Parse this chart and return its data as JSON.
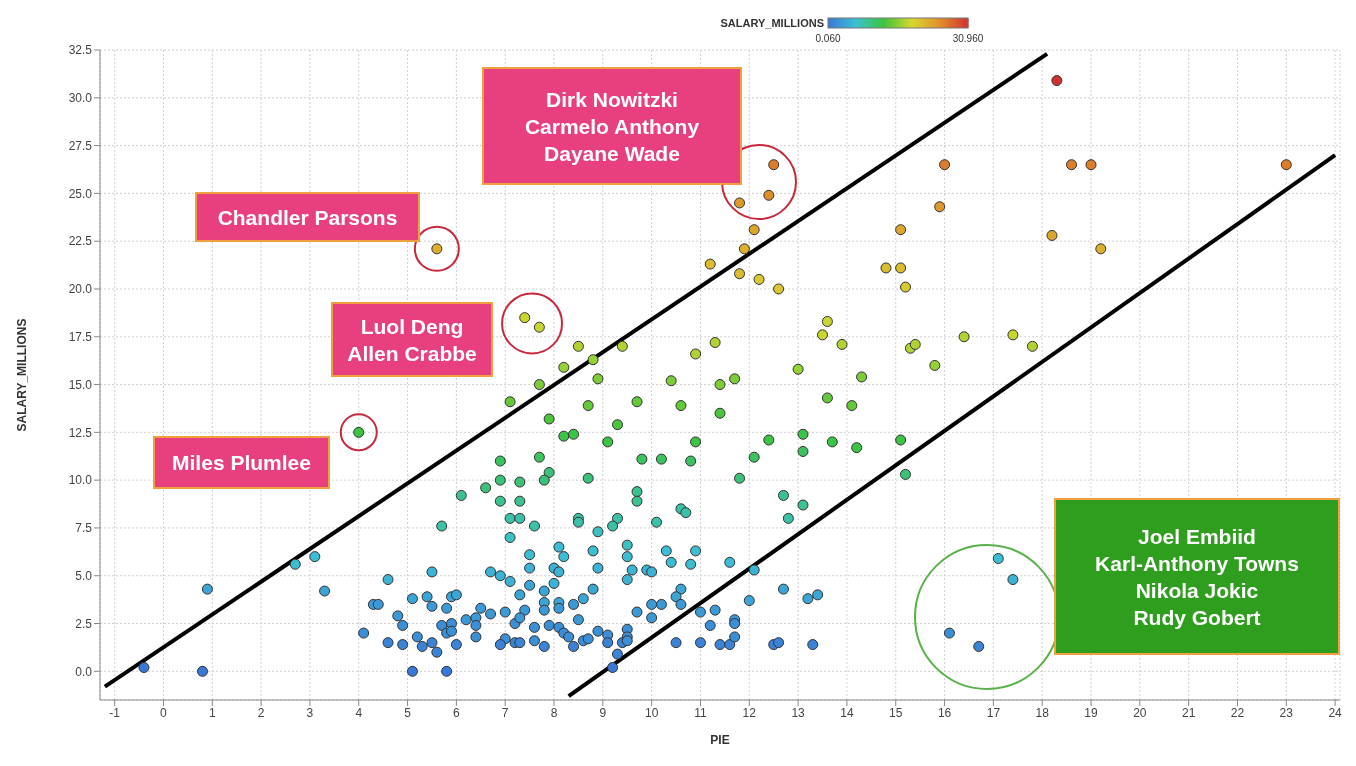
{
  "chart_data": {
    "type": "scatter",
    "xlabel": "PIE",
    "ylabel": "SALARY_MILLIONS",
    "clabel": "SALARY_MILLIONS",
    "clim": [
      0.06,
      30.96
    ],
    "cticks": [
      {
        "value": 0.06,
        "label": "0.060"
      },
      {
        "value": 30.96,
        "label": "30.960"
      }
    ],
    "xlim": [
      -1.3,
      24.1
    ],
    "ylim": [
      -1.5,
      32.5
    ],
    "xticks": [
      -1,
      0,
      1,
      2,
      3,
      4,
      5,
      6,
      7,
      8,
      9,
      10,
      11,
      12,
      13,
      14,
      15,
      16,
      17,
      18,
      19,
      20,
      21,
      22,
      23,
      24
    ],
    "yticks": [
      {
        "value": 0,
        "label": "0.0"
      },
      {
        "value": 2.5,
        "label": "2.5"
      },
      {
        "value": 5,
        "label": "5.0"
      },
      {
        "value": 7.5,
        "label": "7.5"
      },
      {
        "value": 10,
        "label": "10.0"
      },
      {
        "value": 12.5,
        "label": "12.5"
      },
      {
        "value": 15,
        "label": "15.0"
      },
      {
        "value": 17.5,
        "label": "17.5"
      },
      {
        "value": 20,
        "label": "20.0"
      },
      {
        "value": 22.5,
        "label": "22.5"
      },
      {
        "value": 25,
        "label": "25.0"
      },
      {
        "value": 27.5,
        "label": "27.5"
      },
      {
        "value": 30,
        "label": "30.0"
      },
      {
        "value": 32.5,
        "label": "32.5"
      }
    ],
    "grid": true,
    "marker": "circle",
    "x": [
      12.5,
      12.4,
      11.8,
      12.1,
      11.9,
      11.2,
      11.8,
      12.2,
      12.6,
      7.4,
      7.7,
      15.1,
      14.8,
      15.1,
      15.2,
      13.6,
      13.5,
      13.9,
      11.3,
      10.9,
      8.5,
      9.4,
      15.3,
      15.4,
      18.3,
      16.0,
      18.6,
      19.0,
      23.0,
      15.9,
      18.2,
      19.2,
      16.4,
      17.4,
      17.8,
      15.8,
      17.1,
      17.4,
      16.1,
      16.7,
      7.1,
      4.0,
      6.9,
      6.9,
      6.6,
      6.1,
      6.9,
      7.1,
      5.7,
      7.1,
      3.1,
      2.7,
      5.5,
      6.7,
      6.9,
      7.1,
      4.6,
      0.9,
      3.3,
      5.1,
      5.4,
      5.9,
      6.0,
      5.5,
      4.3,
      4.4,
      5.8,
      6.5,
      6.7,
      7.0,
      4.8,
      6.2,
      6.4,
      5.7,
      5.9,
      5.8,
      5.9,
      4.9,
      6.4,
      7.2,
      4.1,
      5.2,
      6.4,
      7.0,
      4.6,
      4.9,
      5.3,
      5.5,
      6.0,
      5.6,
      6.9,
      7.2,
      -0.4,
      0.8,
      5.1,
      5.8,
      8.8,
      8.2,
      13.0,
      14.3,
      7.7,
      8.9,
      10.4,
      11.4,
      11.7,
      13.6,
      14.1,
      8.7,
      9.7,
      10.6,
      11.4,
      7.9,
      9.3,
      8.2,
      8.4,
      9.1,
      10.9,
      12.4,
      13.1,
      13.7,
      14.2,
      15.1,
      13.1,
      12.1,
      9.8,
      10.2,
      10.8,
      7.7,
      7.9,
      7.8,
      8.7,
      11.8,
      15.2,
      7.3,
      7.3,
      9.7,
      9.7,
      10.6,
      10.7,
      12.7,
      13.1,
      12.8,
      7.3,
      8.5,
      8.5,
      9.3,
      9.2,
      7.6,
      8.9,
      10.1,
      8.1,
      8.2,
      7.5,
      7.5,
      8.8,
      9.5,
      9.5,
      10.3,
      10.4,
      10.9,
      10.8,
      11.6,
      12.1,
      8.0,
      8.1,
      8.9,
      9.6,
      9.5,
      9.9,
      10.0,
      7.5,
      8.0,
      8.8,
      7.8,
      12.7,
      10.6,
      10.5,
      10.6,
      13.2,
      13.4,
      12.0,
      7.3,
      7.8,
      7.8,
      8.1,
      8.1,
      8.6,
      8.4,
      7.4,
      9.7,
      10.0,
      10.2,
      10.0,
      11.0,
      11.3,
      8.5,
      7.3,
      11.2,
      11.7,
      11.7,
      7.9,
      8.1,
      7.6,
      8.2,
      8.3,
      8.9,
      9.1,
      9.5,
      9.5,
      7.6,
      7.8,
      7.3,
      8.4,
      8.6,
      8.7,
      9.1,
      9.4,
      9.5,
      10.5,
      11.0,
      11.4,
      11.6,
      11.7,
      12.5,
      12.6,
      13.3,
      9.2,
      9.3,
      5.6
    ],
    "values": [
      26.5,
      24.9,
      24.5,
      23.1,
      22.1,
      21.3,
      20.8,
      20.5,
      20.0,
      18.5,
      18.0,
      23.1,
      21.1,
      21.1,
      20.1,
      18.3,
      17.6,
      17.1,
      17.2,
      16.6,
      17.0,
      17.0,
      16.9,
      17.1,
      30.9,
      26.5,
      26.5,
      26.5,
      26.5,
      24.3,
      22.8,
      22.1,
      17.5,
      17.6,
      17.0,
      16.0,
      5.9,
      4.8,
      2.0,
      1.3,
      14.1,
      12.5,
      11.0,
      10.0,
      9.6,
      9.2,
      8.9,
      8.0,
      7.6,
      7.0,
      6.0,
      5.6,
      5.2,
      5.2,
      5.0,
      4.7,
      4.8,
      4.3,
      4.2,
      3.8,
      3.9,
      3.9,
      4.0,
      3.4,
      3.5,
      3.5,
      3.3,
      3.3,
      3.0,
      3.1,
      2.9,
      2.7,
      2.8,
      2.4,
      2.5,
      2.0,
      2.1,
      2.4,
      2.4,
      2.5,
      2.0,
      1.8,
      1.8,
      1.7,
      1.5,
      1.4,
      1.3,
      1.5,
      1.4,
      1.0,
      1.4,
      1.5,
      0.2,
      0.0,
      0.0,
      0.0,
      16.3,
      15.9,
      15.8,
      15.4,
      15.0,
      15.3,
      15.2,
      15.0,
      15.3,
      14.3,
      13.9,
      13.9,
      14.1,
      13.9,
      13.5,
      13.2,
      12.9,
      12.3,
      12.4,
      12.0,
      12.0,
      12.1,
      12.4,
      12.0,
      11.7,
      12.1,
      11.5,
      11.2,
      11.1,
      11.1,
      11.0,
      11.2,
      10.4,
      10.0,
      10.1,
      10.1,
      10.3,
      9.9,
      8.9,
      9.4,
      8.9,
      8.5,
      8.3,
      9.2,
      8.7,
      8.0,
      8.0,
      8.0,
      7.8,
      8.0,
      7.6,
      7.6,
      7.3,
      7.8,
      6.5,
      6.0,
      6.1,
      5.4,
      6.3,
      6.6,
      6.0,
      6.3,
      5.7,
      6.3,
      5.6,
      5.7,
      5.3,
      5.4,
      5.2,
      5.4,
      5.3,
      4.8,
      5.3,
      5.2,
      4.5,
      4.6,
      4.3,
      4.2,
      4.3,
      4.3,
      3.9,
      3.5,
      3.8,
      4.0,
      3.7,
      4.0,
      3.6,
      3.2,
      3.6,
      3.3,
      3.8,
      3.5,
      3.2,
      3.1,
      3.5,
      3.5,
      2.8,
      3.1,
      3.2,
      2.7,
      2.8,
      2.4,
      2.7,
      2.5,
      2.4,
      2.3,
      2.3,
      2.0,
      1.8,
      2.1,
      1.9,
      2.2,
      1.8,
      1.6,
      1.3,
      1.5,
      1.3,
      1.6,
      1.7,
      1.5,
      1.5,
      1.6,
      1.5,
      1.5,
      1.4,
      1.4,
      1.8,
      1.4,
      1.5,
      1.4,
      0.2,
      0.9,
      22.1
    ],
    "colors": [
      "#dd7d2b",
      "#df8d2a",
      "#df992b",
      "#dea52c",
      "#dcb02d",
      "#dbbc2e",
      "#dbbc2e",
      "#dac82f",
      "#dac82f",
      "#c9d631",
      "#c9d631",
      "#dea52c",
      "#dbbc2e",
      "#dbbc2e",
      "#dac82f",
      "#c9d631",
      "#c9d631",
      "#b0d333",
      "#b0d333",
      "#b0d333",
      "#b0d333",
      "#b0d333",
      "#b0d333",
      "#b0d333",
      "#d03030",
      "#dd7d2b",
      "#dd7d2b",
      "#dd7d2b",
      "#dd7d2b",
      "#df992b",
      "#dea52c",
      "#dcb02d",
      "#b0d333",
      "#c9d631",
      "#b0d333",
      "#96d035",
      "#3cbdd4",
      "#3cb2d5",
      "#3b8fd7",
      "#3a83d7",
      "#64c939",
      "#3cc446",
      "#3cc35f",
      "#3cc278",
      "#3cc278",
      "#3cc290",
      "#3cc290",
      "#3cc1a9",
      "#3cc1a9",
      "#3cc0c1",
      "#3cbdd4",
      "#3cbdd4",
      "#3cb2d5",
      "#3cb2d5",
      "#3cb2d5",
      "#3cb2d5",
      "#3cb2d5",
      "#3ba6d5",
      "#3ba6d5",
      "#3ba6d5",
      "#3ba6d5",
      "#3ba6d5",
      "#3ba6d5",
      "#3b9ad6",
      "#3b9ad6",
      "#3b9ad6",
      "#3b9ad6",
      "#3b9ad6",
      "#3b9ad6",
      "#3b9ad6",
      "#3b9ad6",
      "#3b9ad6",
      "#3b9ad6",
      "#3b8fd7",
      "#3b8fd7",
      "#3b8fd7",
      "#3b8fd7",
      "#3b8fd7",
      "#3b8fd7",
      "#3b8fd7",
      "#3b8fd7",
      "#3b8fd7",
      "#3b8fd7",
      "#3b8fd7",
      "#3a83d7",
      "#3a83d7",
      "#3a83d7",
      "#3a83d7",
      "#3a83d7",
      "#3a83d7",
      "#3a83d7",
      "#3a83d7",
      "#3a78d8",
      "#3a78d8",
      "#3a78d8",
      "#3a78d8",
      "#96d035",
      "#96d035",
      "#96d035",
      "#7dcc37",
      "#7dcc37",
      "#7dcc37",
      "#7dcc37",
      "#7dcc37",
      "#7dcc37",
      "#64c939",
      "#64c939",
      "#64c939",
      "#64c939",
      "#64c939",
      "#4bc63b",
      "#4bc63b",
      "#4bc63b",
      "#3cc446",
      "#3cc446",
      "#3cc446",
      "#3cc446",
      "#3cc446",
      "#3cc446",
      "#3cc446",
      "#3cc446",
      "#3cc446",
      "#3cc35f",
      "#3cc35f",
      "#3cc35f",
      "#3cc35f",
      "#3cc35f",
      "#3cc35f",
      "#3cc278",
      "#3cc278",
      "#3cc278",
      "#3cc278",
      "#3cc278",
      "#3cc278",
      "#3cc290",
      "#3cc290",
      "#3cc290",
      "#3cc1a9",
      "#3cc1a9",
      "#3cc290",
      "#3cc290",
      "#3cc1a9",
      "#3cc1a9",
      "#3cc1a9",
      "#3cc1a9",
      "#3cc1a9",
      "#3cc1a9",
      "#3cc1a9",
      "#3cc0c1",
      "#3cc1a9",
      "#3cbdd4",
      "#3cbdd4",
      "#3cbdd4",
      "#3cb2d5",
      "#3cbdd4",
      "#3cc0c1",
      "#3cbdd4",
      "#3cbdd4",
      "#3cbdd4",
      "#3cbdd4",
      "#3cbdd4",
      "#3cbdd4",
      "#3cb2d5",
      "#3cb2d5",
      "#3cb2d5",
      "#3cb2d5",
      "#3cb2d5",
      "#3cb2d5",
      "#3cb2d5",
      "#3cb2d5",
      "#3ba6d5",
      "#3cb2d5",
      "#3ba6d5",
      "#3ba6d5",
      "#3ba6d5",
      "#3ba6d5",
      "#3ba6d5",
      "#3b9ad6",
      "#3ba6d5",
      "#3ba6d5",
      "#3ba6d5",
      "#3ba6d5",
      "#3ba6d5",
      "#3b9ad6",
      "#3ba6d5",
      "#3b9ad6",
      "#3ba6d5",
      "#3b9ad6",
      "#3b9ad6",
      "#3b9ad6",
      "#3b9ad6",
      "#3b9ad6",
      "#3b9ad6",
      "#3b9ad6",
      "#3b9ad6",
      "#3b9ad6",
      "#3b9ad6",
      "#3b8fd7",
      "#3b9ad6",
      "#3b8fd7",
      "#3b8fd7",
      "#3b8fd7",
      "#3b8fd7",
      "#3b8fd7",
      "#3b8fd7",
      "#3b8fd7",
      "#3b8fd7",
      "#3b8fd7",
      "#3b8fd7",
      "#3b8fd7",
      "#3a83d7",
      "#3a83d7",
      "#3a83d7",
      "#3b8fd7",
      "#3b8fd7",
      "#3a83d7",
      "#3a83d7",
      "#3b8fd7",
      "#3a83d7",
      "#3a83d7",
      "#3a83d7",
      "#3a83d7",
      "#3b8fd7",
      "#3a83d7",
      "#3a83d7",
      "#3a83d7",
      "#3a78d8",
      "#3a83d7",
      "#dcb02d"
    ],
    "series": [
      {
        "type": "line",
        "color": "#000000",
        "marker": "none",
        "x": [
          -1.2,
          18.1
        ],
        "values": [
          -0.8,
          32.3
        ]
      },
      {
        "type": "line",
        "color": "#000000",
        "marker": "none",
        "x": [
          8.3,
          24.0
        ],
        "values": [
          -1.3,
          27.0
        ]
      }
    ],
    "annotations": [
      "Dirk Nowitzki\nCarmelo Anthony\nDayane Wade",
      {
        "text": "Chandler Parsons",
        "x": 5.6,
        "y": 22.1
      },
      {
        "text": "Luol Deng\nAllen Crabbe",
        "x": 7.55,
        "y": 18.2
      },
      {
        "text": "Miles Plumlee",
        "x": 4.0,
        "y": 12.5
      },
      "Joel Embiid\nKarl-Anthony Towns\nNikola Jokic\nRudy Gobert"
    ]
  }
}
